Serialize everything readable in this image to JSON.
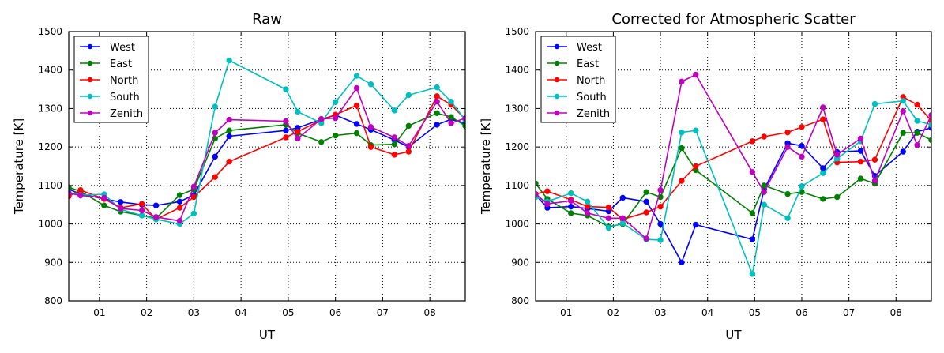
{
  "chart_data": [
    {
      "type": "line",
      "title": "Raw",
      "xlabel": "UT",
      "ylabel": "Temperature [K]",
      "xlim": [
        0.35,
        8.75
      ],
      "ylim": [
        800,
        1500
      ],
      "xticks": [
        1,
        2,
        3,
        4,
        5,
        6,
        7,
        8
      ],
      "xtick_labels": [
        "01",
        "02",
        "03",
        "04",
        "05",
        "06",
        "07",
        "08"
      ],
      "yticks": [
        800,
        900,
        1000,
        1100,
        1200,
        1300,
        1400,
        1500
      ],
      "ytick_labels": [
        "800",
        "900",
        "1000",
        "1100",
        "1200",
        "1300",
        "1400",
        "1500"
      ],
      "grid": true,
      "legend": "top-left",
      "series": [
        {
          "name": "West",
          "color": "#0000ff",
          "x": [
            0.35,
            0.6,
            1.1,
            1.45,
            1.9,
            2.2,
            2.7,
            3.0,
            3.45,
            3.75,
            4.95,
            5.2,
            5.7,
            6.0,
            6.45,
            6.75,
            7.25,
            7.55,
            8.15,
            8.45,
            8.75
          ],
          "y": [
            1090,
            1078,
            1065,
            1057,
            1050,
            1048,
            1058,
            1075,
            1175,
            1228,
            1243,
            1250,
            1272,
            1283,
            1260,
            1245,
            1218,
            1200,
            1258,
            1272,
            1262
          ]
        },
        {
          "name": "East",
          "color": "#008000",
          "x": [
            0.35,
            0.6,
            1.1,
            1.45,
            1.9,
            2.2,
            2.7,
            3.0,
            3.45,
            3.75,
            4.95,
            5.2,
            5.7,
            6.0,
            6.45,
            6.75,
            7.25,
            7.55,
            8.15,
            8.45,
            8.75
          ],
          "y": [
            1095,
            1085,
            1048,
            1032,
            1022,
            1015,
            1075,
            1090,
            1222,
            1243,
            1258,
            1236,
            1213,
            1230,
            1236,
            1205,
            1207,
            1255,
            1288,
            1278,
            1255
          ]
        },
        {
          "name": "North",
          "color": "#ff0000",
          "x": [
            0.35,
            0.6,
            1.1,
            1.45,
            1.9,
            2.2,
            2.7,
            3.0,
            3.45,
            3.75,
            4.95,
            5.2,
            5.7,
            6.0,
            6.45,
            6.75,
            7.25,
            7.55,
            8.15,
            8.45,
            8.75
          ],
          "y": [
            1072,
            1088,
            1065,
            1042,
            1052,
            1012,
            1042,
            1070,
            1122,
            1162,
            1225,
            1240,
            1270,
            1284,
            1308,
            1200,
            1180,
            1188,
            1332,
            1310,
            1272
          ]
        },
        {
          "name": "South",
          "color": "#00bfbf",
          "x": [
            0.35,
            0.6,
            1.1,
            1.45,
            1.9,
            2.2,
            2.7,
            3.0,
            3.45,
            3.75,
            4.95,
            5.2,
            5.7,
            6.0,
            6.45,
            6.75,
            7.25,
            7.55,
            8.15,
            8.45,
            8.75
          ],
          "y": [
            1082,
            1075,
            1077,
            1038,
            1022,
            1012,
            1000,
            1027,
            1305,
            1425,
            1350,
            1292,
            1262,
            1317,
            1385,
            1363,
            1295,
            1335,
            1355,
            1318,
            1270
          ]
        },
        {
          "name": "Zenith",
          "color": "#bf00bf",
          "x": [
            0.35,
            0.6,
            1.1,
            1.45,
            1.9,
            2.2,
            2.7,
            3.0,
            3.45,
            3.75,
            4.95,
            5.2,
            5.7,
            6.0,
            6.45,
            6.75,
            7.25,
            7.55,
            8.15,
            8.45,
            8.75
          ],
          "y": [
            1080,
            1074,
            1068,
            1040,
            1035,
            1018,
            1008,
            1097,
            1237,
            1271,
            1267,
            1222,
            1273,
            1275,
            1353,
            1252,
            1225,
            1203,
            1318,
            1262,
            1275
          ]
        }
      ]
    },
    {
      "type": "line",
      "title": "Corrected for Atmospheric Scatter",
      "xlabel": "UT",
      "ylabel": "Temperature [K]",
      "xlim": [
        0.35,
        8.75
      ],
      "ylim": [
        800,
        1500
      ],
      "xticks": [
        1,
        2,
        3,
        4,
        5,
        6,
        7,
        8
      ],
      "xtick_labels": [
        "01",
        "02",
        "03",
        "04",
        "05",
        "06",
        "07",
        "08"
      ],
      "yticks": [
        800,
        900,
        1000,
        1100,
        1200,
        1300,
        1400,
        1500
      ],
      "ytick_labels": [
        "800",
        "900",
        "1000",
        "1100",
        "1200",
        "1300",
        "1400",
        "1500"
      ],
      "grid": true,
      "legend": "top-left",
      "series": [
        {
          "name": "West",
          "color": "#0000ff",
          "x": [
            0.35,
            0.6,
            1.1,
            1.45,
            1.9,
            2.2,
            2.7,
            3.0,
            3.45,
            3.75,
            4.95,
            5.2,
            5.7,
            6.0,
            6.45,
            6.75,
            7.25,
            7.55,
            8.15,
            8.45,
            8.75
          ],
          "y": [
            1075,
            1042,
            1045,
            1040,
            1033,
            1068,
            1058,
            1000,
            900,
            998,
            960,
            1090,
            1210,
            1203,
            1145,
            1187,
            1190,
            1125,
            1188,
            1240,
            1250
          ]
        },
        {
          "name": "East",
          "color": "#008000",
          "x": [
            0.35,
            0.6,
            1.1,
            1.45,
            1.9,
            2.2,
            2.7,
            3.0,
            3.45,
            3.75,
            4.95,
            5.2,
            5.7,
            6.0,
            6.45,
            6.75,
            7.25,
            7.55,
            8.15,
            8.45,
            8.75
          ],
          "y": [
            1105,
            1065,
            1028,
            1022,
            993,
            1000,
            1083,
            1070,
            1197,
            1140,
            1028,
            1100,
            1078,
            1083,
            1065,
            1070,
            1118,
            1105,
            1237,
            1237,
            1218
          ]
        },
        {
          "name": "North",
          "color": "#ff0000",
          "x": [
            0.35,
            0.6,
            1.1,
            1.45,
            1.9,
            2.2,
            2.7,
            3.0,
            3.45,
            3.75,
            4.95,
            5.2,
            5.7,
            6.0,
            6.45,
            6.75,
            7.25,
            7.55,
            8.15,
            8.45,
            8.75
          ],
          "y": [
            1078,
            1085,
            1063,
            1045,
            1043,
            1012,
            1030,
            1045,
            1112,
            1150,
            1215,
            1227,
            1238,
            1252,
            1272,
            1160,
            1162,
            1167,
            1330,
            1310,
            1268
          ]
        },
        {
          "name": "South",
          "color": "#00bfbf",
          "x": [
            0.35,
            0.6,
            1.1,
            1.45,
            1.9,
            2.2,
            2.7,
            3.0,
            3.45,
            3.75,
            4.95,
            5.2,
            5.7,
            6.0,
            6.45,
            6.75,
            7.25,
            7.55,
            8.15,
            8.45,
            8.75
          ],
          "y": [
            1070,
            1058,
            1080,
            1058,
            990,
            1002,
            960,
            958,
            1238,
            1243,
            870,
            1050,
            1015,
            1098,
            1132,
            1170,
            1215,
            1312,
            1320,
            1268,
            1258
          ]
        },
        {
          "name": "Zenith",
          "color": "#bf00bf",
          "x": [
            0.35,
            0.6,
            1.1,
            1.45,
            1.9,
            2.2,
            2.7,
            3.0,
            3.45,
            3.75,
            4.95,
            5.2,
            5.7,
            6.0,
            6.45,
            6.75,
            7.25,
            7.55,
            8.15,
            8.45,
            8.75
          ],
          "y": [
            1078,
            1052,
            1060,
            1028,
            1015,
            1015,
            962,
            1088,
            1370,
            1388,
            1135,
            1083,
            1200,
            1175,
            1303,
            1180,
            1222,
            1112,
            1293,
            1205,
            1283
          ]
        }
      ]
    }
  ]
}
